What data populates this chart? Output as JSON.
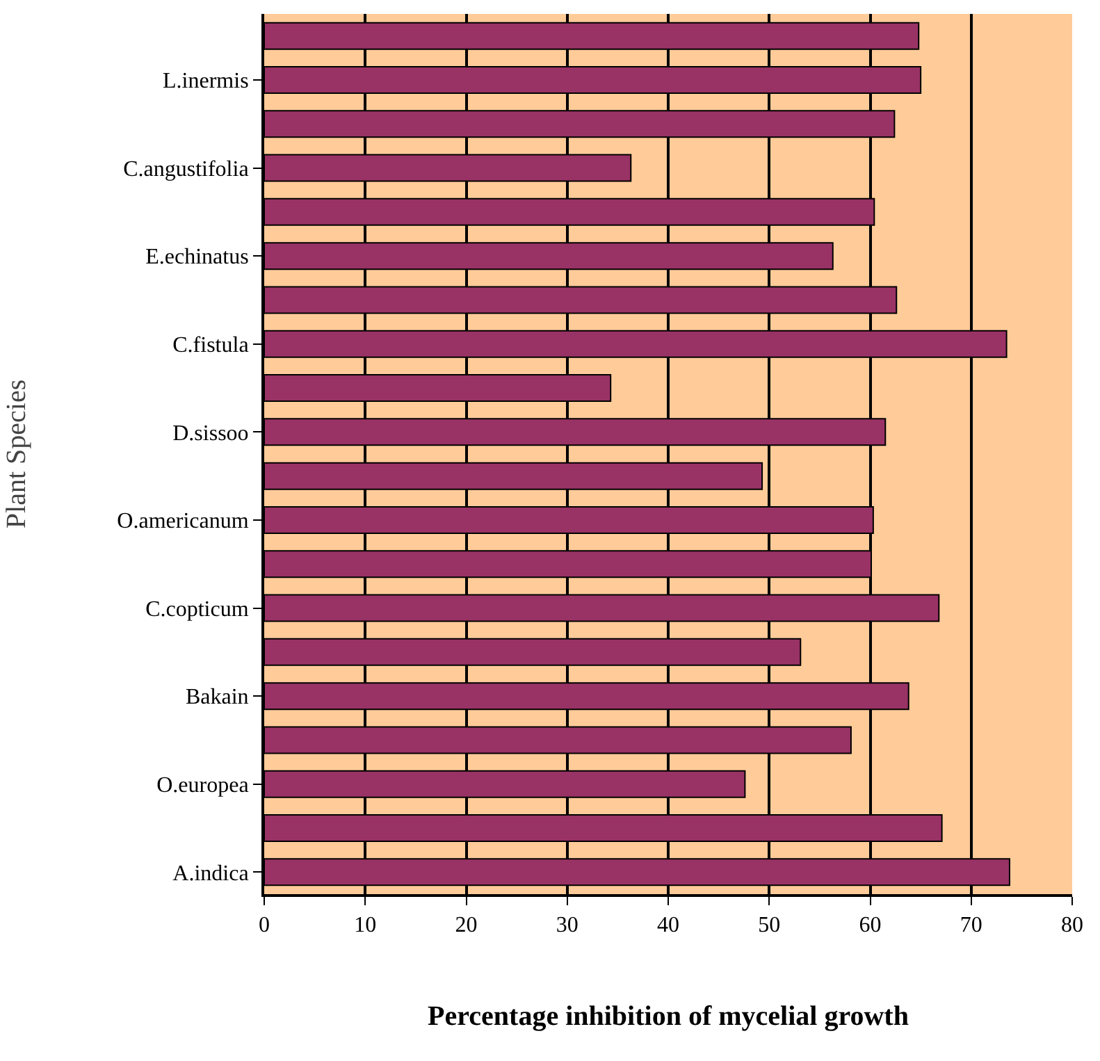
{
  "chart_data": {
    "type": "bar",
    "orientation": "horizontal",
    "xlabel": "Percentage inhibition of mycelial growth",
    "ylabel": "Plant Species",
    "categories": [
      null,
      "L.inermis",
      null,
      "C.angustifolia",
      null,
      "E.echinatus",
      null,
      "C.fistula",
      null,
      "D.sissoo",
      null,
      "O.americanum",
      null,
      "C.copticum",
      null,
      "Bakain",
      null,
      "O.europea",
      null,
      "A.indica"
    ],
    "series": [
      {
        "color": "#993366",
        "values": [
          64.8,
          65.0,
          62.4,
          36.3,
          60.4,
          56.3,
          62.6,
          73.5,
          34.3,
          61.5,
          49.3,
          60.3,
          60.1,
          66.8,
          53.1,
          63.8,
          58.1,
          47.6,
          67.1,
          73.8
        ]
      }
    ],
    "xlim": [
      0,
      80
    ],
    "xticks": [
      0,
      10,
      20,
      30,
      40,
      50,
      60,
      70,
      80
    ],
    "grid": "x"
  }
}
